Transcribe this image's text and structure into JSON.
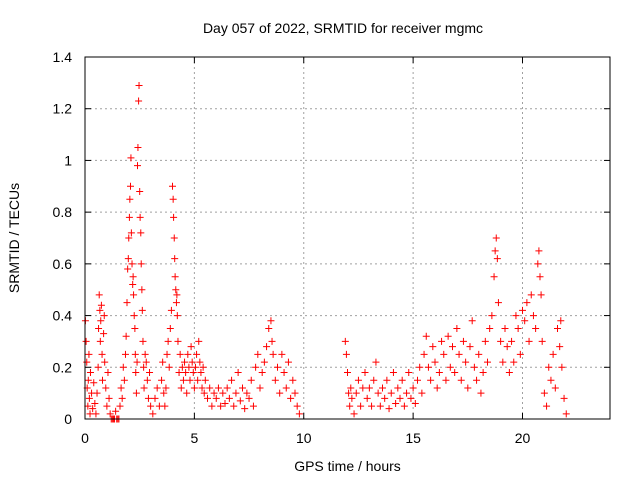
{
  "chart_data": {
    "type": "scatter",
    "title": "Day 057 of 2022, SRMTID for receiver mgmc",
    "xlabel": "GPS time / hours",
    "ylabel": "SRMTID / TECUs",
    "xlim": [
      0,
      24
    ],
    "ylim": [
      0,
      1.4
    ],
    "xticks": [
      0,
      5,
      10,
      15,
      20
    ],
    "xtick_labels": [
      "0",
      "5",
      "10",
      "15",
      "20"
    ],
    "yticks": [
      0,
      0.2,
      0.4,
      0.6,
      0.8,
      1,
      1.2,
      1.4
    ],
    "ytick_labels": [
      "0",
      "0.2",
      "0.4",
      "0.6",
      "0.8",
      "1",
      "1.2",
      "1.4"
    ],
    "grid": true,
    "marker": "+",
    "color": "#ff0000",
    "series": [
      {
        "points": [
          [
            0.02,
            0.38
          ],
          [
            0.05,
            0.3
          ],
          [
            0.08,
            0.22
          ],
          [
            0.1,
            0.12
          ],
          [
            0.13,
            0.05
          ],
          [
            0.15,
            0.15
          ],
          [
            0.18,
            0.25
          ],
          [
            0.2,
            0.08
          ],
          [
            0.23,
            0.02
          ],
          [
            0.25,
            0.18
          ],
          [
            0.3,
            0.1
          ],
          [
            0.35,
            0.04
          ],
          [
            0.4,
            0.14
          ],
          [
            0.45,
            0.06
          ],
          [
            0.5,
            0.02
          ],
          [
            0.55,
            0.1
          ],
          [
            0.6,
            0.2
          ],
          [
            0.62,
            0.35
          ],
          [
            0.65,
            0.48
          ],
          [
            0.68,
            0.42
          ],
          [
            0.7,
            0.3
          ],
          [
            0.72,
            0.38
          ],
          [
            0.75,
            0.44
          ],
          [
            0.78,
            0.25
          ],
          [
            0.8,
            0.15
          ],
          [
            0.85,
            0.33
          ],
          [
            0.88,
            0.4
          ],
          [
            0.9,
            0.22
          ],
          [
            0.95,
            0.12
          ],
          [
            1.0,
            0.05
          ],
          [
            1.05,
            0.18
          ],
          [
            1.1,
            0.08
          ],
          [
            1.15,
            0.02
          ],
          [
            1.2,
            0.0
          ],
          [
            1.25,
            0.0
          ],
          [
            1.3,
            0.0
          ],
          [
            1.35,
            0.0
          ],
          [
            1.4,
            0.03
          ],
          [
            1.45,
            0.0
          ],
          [
            1.5,
            0.0
          ],
          [
            1.55,
            0.0
          ],
          [
            1.6,
            0.05
          ],
          [
            1.65,
            0.12
          ],
          [
            1.7,
            0.08
          ],
          [
            1.75,
            0.2
          ],
          [
            1.8,
            0.15
          ],
          [
            1.85,
            0.25
          ],
          [
            1.88,
            0.32
          ],
          [
            1.92,
            0.45
          ],
          [
            1.95,
            0.58
          ],
          [
            1.98,
            0.62
          ],
          [
            2.0,
            0.7
          ],
          [
            2.03,
            0.78
          ],
          [
            2.05,
            0.85
          ],
          [
            2.08,
            0.9
          ],
          [
            2.1,
            1.01
          ],
          [
            2.12,
            0.72
          ],
          [
            2.15,
            0.6
          ],
          [
            2.18,
            0.52
          ],
          [
            2.2,
            0.55
          ],
          [
            2.22,
            0.48
          ],
          [
            2.25,
            0.4
          ],
          [
            2.28,
            0.35
          ],
          [
            2.3,
            0.25
          ],
          [
            2.32,
            0.18
          ],
          [
            2.35,
            0.1
          ],
          [
            2.38,
            0.22
          ],
          [
            2.4,
            0.98
          ],
          [
            2.42,
            1.05
          ],
          [
            2.45,
            1.23
          ],
          [
            2.47,
            1.29
          ],
          [
            2.5,
            0.88
          ],
          [
            2.52,
            0.78
          ],
          [
            2.55,
            0.72
          ],
          [
            2.57,
            0.6
          ],
          [
            2.6,
            0.5
          ],
          [
            2.62,
            0.42
          ],
          [
            2.65,
            0.3
          ],
          [
            2.68,
            0.2
          ],
          [
            2.7,
            0.12
          ],
          [
            2.75,
            0.25
          ],
          [
            2.8,
            0.22
          ],
          [
            2.85,
            0.15
          ],
          [
            2.9,
            0.08
          ],
          [
            2.95,
            0.18
          ],
          [
            3.0,
            0.05
          ],
          [
            3.1,
            0.02
          ],
          [
            3.2,
            0.08
          ],
          [
            3.3,
            0.12
          ],
          [
            3.4,
            0.05
          ],
          [
            3.5,
            0.15
          ],
          [
            3.55,
            0.22
          ],
          [
            3.6,
            0.1
          ],
          [
            3.65,
            0.05
          ],
          [
            3.7,
            0.12
          ],
          [
            3.75,
            0.25
          ],
          [
            3.8,
            0.3
          ],
          [
            3.85,
            0.2
          ],
          [
            3.9,
            0.35
          ],
          [
            3.95,
            0.42
          ],
          [
            4.0,
            0.9
          ],
          [
            4.03,
            0.85
          ],
          [
            4.05,
            0.78
          ],
          [
            4.08,
            0.7
          ],
          [
            4.1,
            0.62
          ],
          [
            4.12,
            0.55
          ],
          [
            4.15,
            0.5
          ],
          [
            4.18,
            0.45
          ],
          [
            4.2,
            0.48
          ],
          [
            4.22,
            0.4
          ],
          [
            4.25,
            0.3
          ],
          [
            4.3,
            0.18
          ],
          [
            4.35,
            0.25
          ],
          [
            4.4,
            0.12
          ],
          [
            4.45,
            0.2
          ],
          [
            4.5,
            0.15
          ],
          [
            4.55,
            0.22
          ],
          [
            4.6,
            0.18
          ],
          [
            4.65,
            0.1
          ],
          [
            4.7,
            0.25
          ],
          [
            4.75,
            0.2
          ],
          [
            4.8,
            0.15
          ],
          [
            4.85,
            0.28
          ],
          [
            4.9,
            0.22
          ],
          [
            4.95,
            0.18
          ],
          [
            5.0,
            0.12
          ],
          [
            5.05,
            0.2
          ],
          [
            5.1,
            0.25
          ],
          [
            5.15,
            0.15
          ],
          [
            5.2,
            0.3
          ],
          [
            5.25,
            0.22
          ],
          [
            5.3,
            0.18
          ],
          [
            5.35,
            0.12
          ],
          [
            5.4,
            0.2
          ],
          [
            5.45,
            0.1
          ],
          [
            5.5,
            0.15
          ],
          [
            5.6,
            0.08
          ],
          [
            5.7,
            0.12
          ],
          [
            5.8,
            0.05
          ],
          [
            5.9,
            0.1
          ],
          [
            6.0,
            0.08
          ],
          [
            6.1,
            0.12
          ],
          [
            6.2,
            0.05
          ],
          [
            6.3,
            0.1
          ],
          [
            6.4,
            0.06
          ],
          [
            6.5,
            0.12
          ],
          [
            6.6,
            0.08
          ],
          [
            6.7,
            0.15
          ],
          [
            6.8,
            0.05
          ],
          [
            6.9,
            0.1
          ],
          [
            7.0,
            0.18
          ],
          [
            7.1,
            0.07
          ],
          [
            7.2,
            0.12
          ],
          [
            7.3,
            0.04
          ],
          [
            7.4,
            0.1
          ],
          [
            7.5,
            0.08
          ],
          [
            7.6,
            0.15
          ],
          [
            7.7,
            0.05
          ],
          [
            7.8,
            0.2
          ],
          [
            7.9,
            0.25
          ],
          [
            8.0,
            0.12
          ],
          [
            8.1,
            0.18
          ],
          [
            8.2,
            0.22
          ],
          [
            8.3,
            0.28
          ],
          [
            8.4,
            0.35
          ],
          [
            8.5,
            0.38
          ],
          [
            8.55,
            0.3
          ],
          [
            8.6,
            0.25
          ],
          [
            8.7,
            0.15
          ],
          [
            8.8,
            0.2
          ],
          [
            8.9,
            0.1
          ],
          [
            9.0,
            0.25
          ],
          [
            9.1,
            0.18
          ],
          [
            9.2,
            0.12
          ],
          [
            9.3,
            0.22
          ],
          [
            9.4,
            0.08
          ],
          [
            9.5,
            0.15
          ],
          [
            9.6,
            0.1
          ],
          [
            9.7,
            0.05
          ],
          [
            9.8,
            0.02
          ],
          [
            11.9,
            0.3
          ],
          [
            11.95,
            0.25
          ],
          [
            12.0,
            0.18
          ],
          [
            12.05,
            0.1
          ],
          [
            12.1,
            0.05
          ],
          [
            12.15,
            0.12
          ],
          [
            12.2,
            0.08
          ],
          [
            12.3,
            0.02
          ],
          [
            12.4,
            0.1
          ],
          [
            12.5,
            0.15
          ],
          [
            12.6,
            0.05
          ],
          [
            12.7,
            0.12
          ],
          [
            12.8,
            0.18
          ],
          [
            12.9,
            0.08
          ],
          [
            13.0,
            0.12
          ],
          [
            13.1,
            0.05
          ],
          [
            13.2,
            0.15
          ],
          [
            13.3,
            0.22
          ],
          [
            13.4,
            0.1
          ],
          [
            13.5,
            0.05
          ],
          [
            13.6,
            0.12
          ],
          [
            13.7,
            0.08
          ],
          [
            13.8,
            0.15
          ],
          [
            13.9,
            0.04
          ],
          [
            14.0,
            0.1
          ],
          [
            14.1,
            0.18
          ],
          [
            14.2,
            0.06
          ],
          [
            14.3,
            0.12
          ],
          [
            14.4,
            0.08
          ],
          [
            14.5,
            0.15
          ],
          [
            14.6,
            0.05
          ],
          [
            14.7,
            0.1
          ],
          [
            14.8,
            0.18
          ],
          [
            14.9,
            0.08
          ],
          [
            15.0,
            0.12
          ],
          [
            15.1,
            0.06
          ],
          [
            15.2,
            0.15
          ],
          [
            15.3,
            0.2
          ],
          [
            15.4,
            0.1
          ],
          [
            15.5,
            0.25
          ],
          [
            15.6,
            0.32
          ],
          [
            15.7,
            0.2
          ],
          [
            15.8,
            0.15
          ],
          [
            15.9,
            0.28
          ],
          [
            16.0,
            0.22
          ],
          [
            16.1,
            0.12
          ],
          [
            16.2,
            0.18
          ],
          [
            16.3,
            0.3
          ],
          [
            16.4,
            0.25
          ],
          [
            16.5,
            0.15
          ],
          [
            16.6,
            0.32
          ],
          [
            16.7,
            0.2
          ],
          [
            16.8,
            0.28
          ],
          [
            16.9,
            0.18
          ],
          [
            17.0,
            0.35
          ],
          [
            17.1,
            0.25
          ],
          [
            17.2,
            0.15
          ],
          [
            17.3,
            0.3
          ],
          [
            17.4,
            0.22
          ],
          [
            17.5,
            0.12
          ],
          [
            17.6,
            0.28
          ],
          [
            17.7,
            0.38
          ],
          [
            17.8,
            0.2
          ],
          [
            17.9,
            0.15
          ],
          [
            18.0,
            0.25
          ],
          [
            18.1,
            0.1
          ],
          [
            18.2,
            0.18
          ],
          [
            18.3,
            0.3
          ],
          [
            18.4,
            0.22
          ],
          [
            18.5,
            0.35
          ],
          [
            18.6,
            0.4
          ],
          [
            18.7,
            0.55
          ],
          [
            18.75,
            0.65
          ],
          [
            18.8,
            0.7
          ],
          [
            18.85,
            0.62
          ],
          [
            18.9,
            0.45
          ],
          [
            19.0,
            0.3
          ],
          [
            19.1,
            0.22
          ],
          [
            19.2,
            0.35
          ],
          [
            19.3,
            0.28
          ],
          [
            19.4,
            0.18
          ],
          [
            19.5,
            0.3
          ],
          [
            19.6,
            0.22
          ],
          [
            19.7,
            0.4
          ],
          [
            19.8,
            0.35
          ],
          [
            19.9,
            0.25
          ],
          [
            20.0,
            0.42
          ],
          [
            20.1,
            0.38
          ],
          [
            20.2,
            0.45
          ],
          [
            20.3,
            0.3
          ],
          [
            20.4,
            0.48
          ],
          [
            20.5,
            0.4
          ],
          [
            20.6,
            0.35
          ],
          [
            20.7,
            0.6
          ],
          [
            20.75,
            0.65
          ],
          [
            20.8,
            0.55
          ],
          [
            20.85,
            0.48
          ],
          [
            20.9,
            0.3
          ],
          [
            21.0,
            0.1
          ],
          [
            21.1,
            0.05
          ],
          [
            21.2,
            0.2
          ],
          [
            21.3,
            0.15
          ],
          [
            21.4,
            0.25
          ],
          [
            21.5,
            0.12
          ],
          [
            21.6,
            0.35
          ],
          [
            21.7,
            0.28
          ],
          [
            21.75,
            0.38
          ],
          [
            21.8,
            0.2
          ],
          [
            21.9,
            0.08
          ],
          [
            22.0,
            0.02
          ]
        ]
      }
    ]
  }
}
